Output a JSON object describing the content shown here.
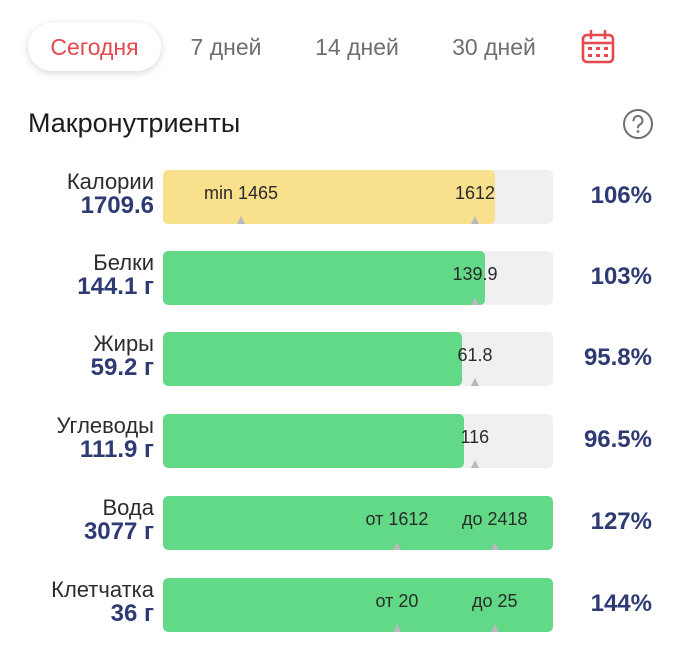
{
  "tabs": [
    {
      "label": "Сегодня",
      "active": true
    },
    {
      "label": "7 дней",
      "active": false
    },
    {
      "label": "14 дней",
      "active": false
    },
    {
      "label": "30 дней",
      "active": false
    }
  ],
  "calendar_icon": "calendar-icon",
  "section": {
    "title": "Макронутриенты",
    "help_icon": "help-icon"
  },
  "colors": {
    "accent_red": "#e5484d",
    "value_navy": "#2e3a73",
    "bar_yellow": "#f9e08d",
    "bar_green": "#62d986",
    "track": "#f0f0f2"
  },
  "nutrients": [
    {
      "name": "Калории",
      "value": "1709.6",
      "percent": "106%",
      "fill_fraction": 0.85,
      "color": "yellow",
      "markers": [
        {
          "label": "min 1465",
          "at": 0.2
        },
        {
          "label": "1612",
          "at": 0.8
        }
      ]
    },
    {
      "name": "Белки",
      "value": "144.1 г",
      "percent": "103%",
      "fill_fraction": 0.826,
      "color": "green",
      "markers": [
        {
          "label": "139.9",
          "at": 0.8
        }
      ]
    },
    {
      "name": "Жиры",
      "value": "59.2 г",
      "percent": "95.8%",
      "fill_fraction": 0.767,
      "color": "green",
      "markers": [
        {
          "label": "61.8",
          "at": 0.8
        }
      ]
    },
    {
      "name": "Углеводы",
      "value": "111.9 г",
      "percent": "96.5%",
      "fill_fraction": 0.772,
      "color": "green",
      "markers": [
        {
          "label": "116",
          "at": 0.8
        }
      ]
    },
    {
      "name": "Вода",
      "value": "3077 г",
      "percent": "127%",
      "fill_fraction": 1.0,
      "color": "green",
      "markers": [
        {
          "label": "от 1612",
          "at": 0.6
        },
        {
          "label": "до 2418",
          "at": 0.85
        }
      ]
    },
    {
      "name": "Клетчатка",
      "value": "36 г",
      "percent": "144%",
      "fill_fraction": 1.0,
      "color": "green",
      "markers": [
        {
          "label": "от 20",
          "at": 0.6
        },
        {
          "label": "до 25",
          "at": 0.85
        }
      ]
    }
  ]
}
